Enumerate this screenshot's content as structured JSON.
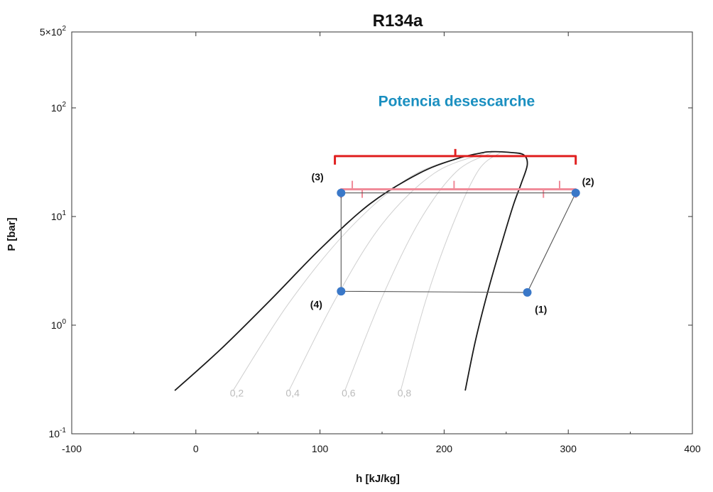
{
  "chart_data": {
    "type": "line",
    "title": "R134a",
    "xlabel": "h [kJ/kg]",
    "ylabel": "P [bar]",
    "xlim": [
      -100,
      400
    ],
    "ylim": [
      0.1,
      500
    ],
    "yscale": "log",
    "grid": false,
    "x_ticks": [
      -100,
      0,
      100,
      200,
      300,
      400
    ],
    "x_tick_labels": [
      "-100",
      "0",
      "100",
      "200",
      "300",
      "400"
    ],
    "y_ticks": [
      {
        "value": 0.1,
        "base": "10",
        "exp": "-1"
      },
      {
        "value": 1,
        "base": "10",
        "exp": "0"
      },
      {
        "value": 10,
        "base": "10",
        "exp": "1"
      },
      {
        "value": 100,
        "base": "10",
        "exp": "2"
      },
      {
        "value": 500,
        "base": "5×10",
        "exp": "2"
      }
    ],
    "saturation_dome": {
      "liquid": [
        [
          -17,
          0.25
        ],
        [
          20,
          0.6
        ],
        [
          60,
          1.7
        ],
        [
          100,
          5.0
        ],
        [
          140,
          13.0
        ],
        [
          180,
          25.0
        ],
        [
          210,
          34.0
        ],
        [
          230,
          38.5
        ]
      ],
      "vapor": [
        [
          217,
          0.25
        ],
        [
          225,
          0.7
        ],
        [
          235,
          2.0
        ],
        [
          247,
          6.0
        ],
        [
          256,
          13.0
        ],
        [
          262,
          20.0
        ],
        [
          267,
          30.0
        ],
        [
          264,
          37.0
        ],
        [
          252,
          39.0
        ],
        [
          238,
          39.5
        ]
      ]
    },
    "quality_lines": [
      {
        "label": "0,2",
        "label_at": [
          33,
          0.22
        ],
        "points": [
          [
            30,
            0.25
          ],
          [
            75,
            1.6
          ],
          [
            125,
            8.0
          ],
          [
            175,
            24.0
          ],
          [
            225,
            38.0
          ]
        ]
      },
      {
        "label": "0,4",
        "label_at": [
          78,
          0.22
        ],
        "points": [
          [
            75,
            0.25
          ],
          [
            112,
            1.7
          ],
          [
            150,
            8.5
          ],
          [
            192,
            25.0
          ],
          [
            232,
            38.0
          ]
        ]
      },
      {
        "label": "0,6",
        "label_at": [
          123,
          0.22
        ],
        "points": [
          [
            120,
            0.25
          ],
          [
            150,
            1.8
          ],
          [
            180,
            9.0
          ],
          [
            210,
            26.0
          ],
          [
            238,
            38.5
          ]
        ]
      },
      {
        "label": "0,8",
        "label_at": [
          168,
          0.22
        ],
        "points": [
          [
            165,
            0.25
          ],
          [
            186,
            1.8
          ],
          [
            208,
            9.0
          ],
          [
            228,
            27.0
          ],
          [
            245,
            38.5
          ]
        ]
      }
    ],
    "cycle": {
      "points": [
        {
          "label": "(1)",
          "h": 267,
          "p": 2.0,
          "label_at": [
            278,
            1.3
          ]
        },
        {
          "label": "(2)",
          "h": 306,
          "p": 16.5,
          "label_at": [
            316,
            19.5
          ]
        },
        {
          "label": "(3)",
          "h": 117,
          "p": 16.5,
          "label_at": [
            98,
            21.5
          ]
        },
        {
          "label": "(4)",
          "h": 117,
          "p": 2.05,
          "label_at": [
            97,
            1.45
          ]
        }
      ],
      "color": "#3a78c8"
    },
    "annotation": {
      "text": "Potencia desescarche",
      "at": [
        210,
        115
      ],
      "color": "#1a8fc0"
    },
    "braces": [
      {
        "color": "#e02020",
        "h_start": 112,
        "h_end": 306,
        "p": 36,
        "tip_h": 209
      },
      {
        "color": "#f08a98",
        "h_start": 117,
        "h_end": 306,
        "p": 17.8,
        "ticks_h": [
          126,
          134,
          208,
          280,
          293
        ]
      }
    ]
  }
}
